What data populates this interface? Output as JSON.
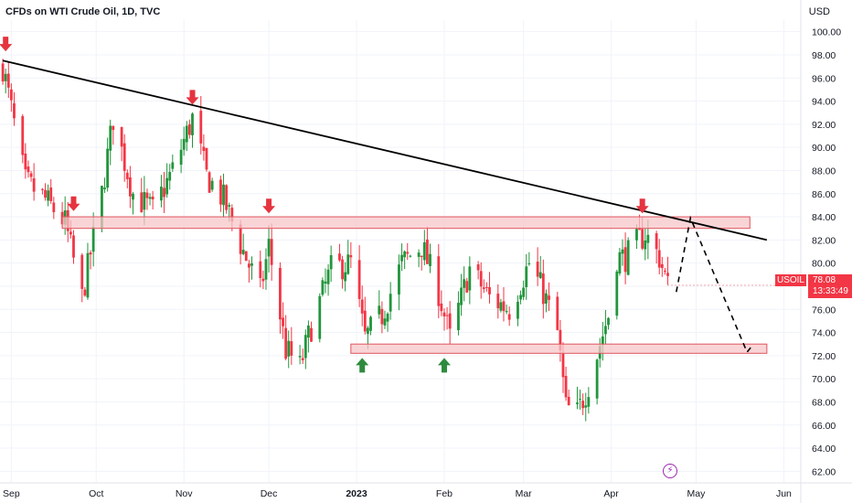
{
  "header": {
    "title": "CFDs on WTI Crude Oil, 1D, TVC",
    "currency": "USD"
  },
  "price_label": {
    "symbol": "USOIL",
    "value": "78.08",
    "countdown": "13:33:49"
  },
  "colors": {
    "up": "#22953c",
    "down": "#f23645",
    "zone_fill": "#f7c5c8",
    "zone_stroke": "#e05560",
    "trendline": "#000000",
    "grid": "#f0f3fa",
    "axis_text": "#131722"
  },
  "icons": {
    "flash": "lightning-bolt-icon"
  },
  "chart_data": {
    "type": "candlestick",
    "y_axis": {
      "ticks": [
        "62.00",
        "64.00",
        "66.00",
        "68.00",
        "70.00",
        "72.00",
        "74.00",
        "76.00",
        "78.00",
        "80.00",
        "82.00",
        "84.00",
        "86.00",
        "88.00",
        "90.00",
        "92.00",
        "94.00",
        "96.00",
        "98.00",
        "100.00"
      ],
      "range": [
        61.0,
        101.0
      ],
      "position": "right"
    },
    "x_axis": {
      "ticks": [
        {
          "label": "Sep",
          "date": "2022-09-01"
        },
        {
          "label": "Oct",
          "date": "2022-10-01"
        },
        {
          "label": "Nov",
          "date": "2022-11-01"
        },
        {
          "label": "Dec",
          "date": "2022-12-01"
        },
        {
          "label": "2023",
          "date": "2023-01-01",
          "bold": true
        },
        {
          "label": "Feb",
          "date": "2023-02-01"
        },
        {
          "label": "Mar",
          "date": "2023-03-01"
        },
        {
          "label": "Apr",
          "date": "2023-04-01"
        },
        {
          "label": "May",
          "date": "2023-05-01"
        },
        {
          "label": "Jun",
          "date": "2023-06-01"
        }
      ],
      "range": [
        "2022-08-28",
        "2023-06-07"
      ]
    },
    "closes": [
      [
        "2022-08-29",
        97.0
      ],
      [
        "2022-09-06",
        87.0
      ],
      [
        "2022-09-13",
        85.5
      ],
      [
        "2022-09-20",
        83.5
      ],
      [
        "2022-09-26",
        77.0
      ],
      [
        "2022-10-03",
        86.0
      ],
      [
        "2022-10-07",
        92.5
      ],
      [
        "2022-10-14",
        86.0
      ],
      [
        "2022-10-21",
        84.5
      ],
      [
        "2022-10-28",
        88.0
      ],
      [
        "2022-11-04",
        92.5
      ],
      [
        "2022-11-09",
        87.5
      ],
      [
        "2022-11-15",
        85.5
      ],
      [
        "2022-11-22",
        81.0
      ],
      [
        "2022-11-28",
        77.5
      ],
      [
        "2022-12-01",
        81.5
      ],
      [
        "2022-12-07",
        72.5
      ],
      [
        "2022-12-12",
        71.0
      ],
      [
        "2022-12-16",
        74.5
      ],
      [
        "2022-12-23",
        79.5
      ],
      [
        "2022-12-30",
        80.0
      ],
      [
        "2023-01-04",
        73.5
      ],
      [
        "2023-01-10",
        75.5
      ],
      [
        "2023-01-17",
        80.0
      ],
      [
        "2023-01-24",
        81.5
      ],
      [
        "2023-01-30",
        77.5
      ],
      [
        "2023-02-03",
        73.5
      ],
      [
        "2023-02-10",
        79.5
      ],
      [
        "2023-02-17",
        77.0
      ],
      [
        "2023-02-24",
        76.0
      ],
      [
        "2023-03-03",
        80.0
      ],
      [
        "2023-03-08",
        77.5
      ],
      [
        "2023-03-13",
        74.0
      ],
      [
        "2023-03-16",
        67.5
      ],
      [
        "2023-03-20",
        67.0
      ],
      [
        "2023-03-24",
        69.5
      ],
      [
        "2023-03-28",
        73.0
      ],
      [
        "2023-03-31",
        75.5
      ],
      [
        "2023-04-03",
        80.5
      ],
      [
        "2023-04-06",
        80.5
      ],
      [
        "2023-04-11",
        82.0
      ],
      [
        "2023-04-13",
        82.5
      ],
      [
        "2023-04-18",
        80.5
      ],
      [
        "2023-04-21",
        78.0
      ]
    ],
    "trendline": [
      [
        "2022-08-29",
        97.5
      ],
      [
        "2023-05-26",
        82.0
      ]
    ],
    "zones": [
      {
        "from": "2022-09-19",
        "to": "2023-05-20",
        "low": 83.0,
        "high": 84.0
      },
      {
        "from": "2022-12-30",
        "to": "2023-05-26",
        "low": 72.2,
        "high": 73.0
      }
    ],
    "projection": [
      [
        "2023-04-24",
        77.5
      ],
      [
        "2023-04-29",
        83.9
      ],
      [
        "2023-05-19",
        72.3
      ],
      [
        "2023-05-21",
        72.9
      ]
    ],
    "arrows": [
      {
        "date": "2022-08-30",
        "value": 98.3,
        "dir": "down"
      },
      {
        "date": "2022-09-23",
        "value": 84.5,
        "dir": "down"
      },
      {
        "date": "2022-11-04",
        "value": 93.7,
        "dir": "down"
      },
      {
        "date": "2022-12-01",
        "value": 84.3,
        "dir": "down"
      },
      {
        "date": "2023-01-03",
        "value": 71.8,
        "dir": "up"
      },
      {
        "date": "2023-02-01",
        "value": 71.8,
        "dir": "up"
      },
      {
        "date": "2023-04-12",
        "value": 84.3,
        "dir": "down"
      }
    ],
    "last_price": 78.08
  }
}
